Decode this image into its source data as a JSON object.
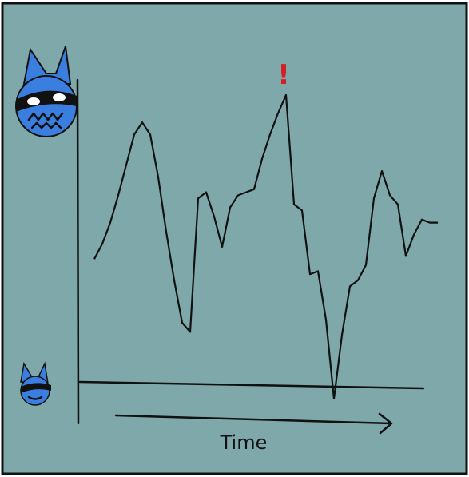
{
  "chart_data": {
    "type": "line",
    "x_label": "Time",
    "annotation": "!",
    "annotation_color": "#d42020",
    "color": "#111111",
    "ylim": [
      0,
      100
    ],
    "values": [
      41,
      46,
      53,
      62,
      72,
      82,
      86,
      82,
      68,
      50,
      34,
      20,
      17,
      61,
      63,
      55,
      45,
      58,
      62,
      63,
      64,
      74,
      82,
      89,
      95,
      59,
      57,
      36,
      37,
      21,
      -5,
      16,
      32,
      34,
      39,
      61,
      70,
      62,
      59,
      42,
      49,
      54,
      53,
      53
    ]
  }
}
